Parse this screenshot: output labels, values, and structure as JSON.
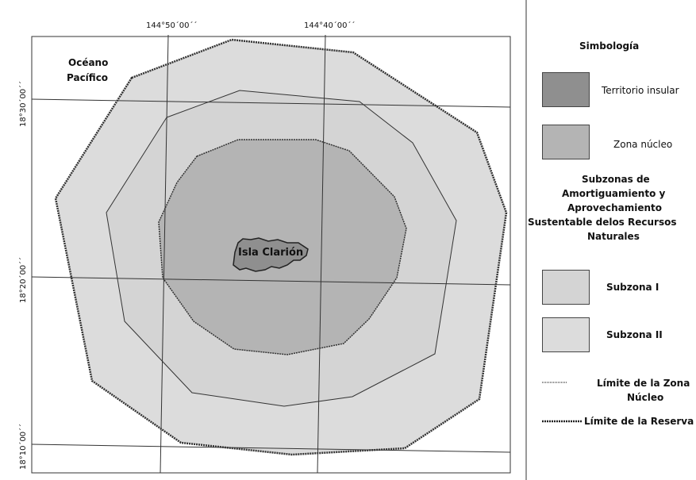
{
  "map": {
    "longitude_labels": [
      "144°50´00´´",
      "144°40´00´´"
    ],
    "latitude_labels": [
      "18°30´00´´",
      "18°20´00´´",
      "18°10´00´´"
    ],
    "ocean_label_line1": "Océano",
    "ocean_label_line2": "Pacífico",
    "island_label": "Isla Clarión"
  },
  "legend": {
    "title": "Simbología",
    "items": [
      {
        "label": "Territorio insular",
        "color": "#8f8f8f"
      },
      {
        "label": "Zona núcleo",
        "color": "#b4b4b4"
      }
    ],
    "subzones_heading_lines": [
      "Subzonas de",
      "Amortiguamiento y",
      "Aprovechamiento",
      "Sustentable delos  Recursos",
      "Naturales"
    ],
    "subzones": [
      {
        "label": "Subzona I",
        "color": "#d4d4d4"
      },
      {
        "label": "Subzona II",
        "color": "#dcdcdc"
      }
    ],
    "line_items": [
      {
        "label_line1": "Límite de la Zona",
        "label_line2": "Núcleo"
      },
      {
        "label_line1": "Límite de la Reserva"
      }
    ]
  },
  "colors": {
    "outer_zone": "#dcdcdc",
    "middle_zone": "#d4d4d4",
    "core_zone": "#b4b4b4",
    "island": "#8f8f8f",
    "lines": "#333333"
  }
}
